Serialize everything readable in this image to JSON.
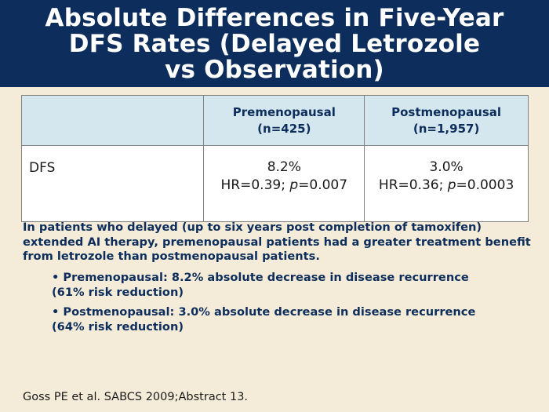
{
  "title": {
    "lines": [
      "Absolute Differences in Five-Year",
      "DFS Rates (Delayed Letrozole",
      "vs Observation)"
    ]
  },
  "table": {
    "headers": [
      "",
      {
        "line1": "Premenopausal",
        "line2": "(n=425)"
      },
      {
        "line1": "Postmenopausal",
        "line2": "(n=1,957)"
      }
    ],
    "rows": [
      {
        "label": "DFS",
        "pre": {
          "value": "8.2%",
          "hr_prefix": "HR=0.39; ",
          "p_symbol": "p",
          "p_suffix": "=0.007"
        },
        "post": {
          "value": "3.0%",
          "hr_prefix": "HR=0.36; ",
          "p_symbol": "p",
          "p_suffix": "=0.0003"
        }
      }
    ]
  },
  "summary": "In patients who delayed (up to six years post completion of tamoxifen) extended AI therapy, premenopausal patients had a greater treatment benefit from letrozole than postmenopausal patients.",
  "bullets": [
    {
      "line1": "• Premenopausal: 8.2% absolute decrease in disease recurrence",
      "line2": "(61% risk reduction)"
    },
    {
      "line1": "• Postmenopausal: 3.0% absolute decrease in disease recurrence",
      "line2": "(64% risk reduction)"
    }
  ],
  "citation": "Goss PE et al. SABCS 2009;Abstract 13.",
  "colors": {
    "title_bg": "#0d2e5c",
    "page_bg": "#f4ecd8",
    "table_header_bg": "#d4e7ef",
    "accent_text": "#0d2e5c"
  }
}
